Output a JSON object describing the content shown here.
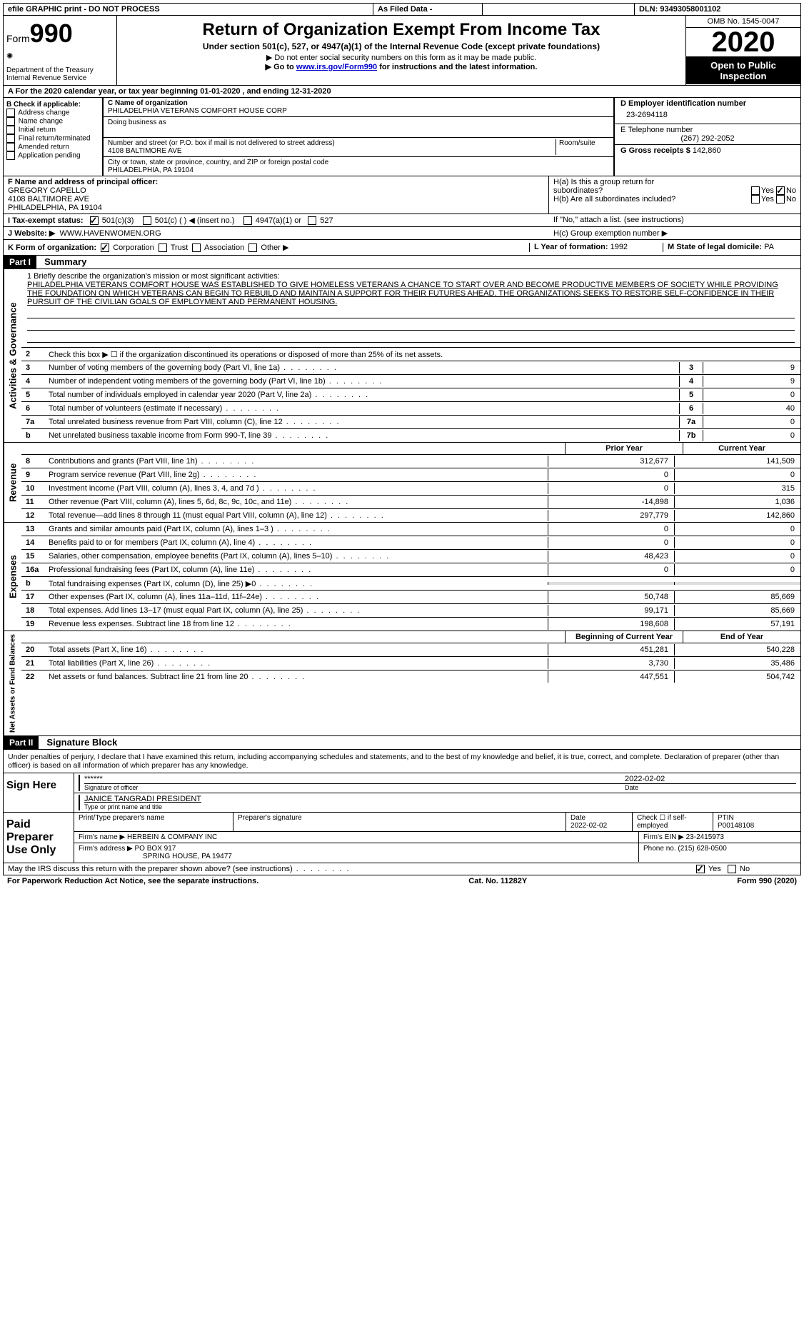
{
  "topbar": {
    "efile": "efile GRAPHIC print - DO NOT PROCESS",
    "asfiled": "As Filed Data -",
    "dln_label": "DLN:",
    "dln": "93493058001102"
  },
  "header": {
    "form_label": "Form",
    "form_num": "990",
    "dept": "Department of the Treasury\nInternal Revenue Service",
    "title": "Return of Organization Exempt From Income Tax",
    "subtitle": "Under section 501(c), 527, or 4947(a)(1) of the Internal Revenue Code (except private foundations)",
    "note1": "▶ Do not enter social security numbers on this form as it may be made public.",
    "note2_pre": "▶ Go to ",
    "note2_link": "www.irs.gov/Form990",
    "note2_post": " for instructions and the latest information.",
    "omb": "OMB No. 1545-0047",
    "year": "2020",
    "open": "Open to Public Inspection"
  },
  "rowA": "A   For the 2020 calendar year, or tax year beginning 01-01-2020   , and ending 12-31-2020",
  "colB": {
    "label": "B Check if applicable:",
    "items": [
      "Address change",
      "Name change",
      "Initial return",
      "Final return/terminated",
      "Amended return",
      "Application pending"
    ]
  },
  "colC": {
    "name_label": "C Name of organization",
    "name": "PHILADELPHIA VETERANS COMFORT HOUSE CORP",
    "dba_label": "Doing business as",
    "street_label": "Number and street (or P.O. box if mail is not delivered to street address)",
    "street": "4108 BALTIMORE AVE",
    "room_label": "Room/suite",
    "city_label": "City or town, state or province, country, and ZIP or foreign postal code",
    "city": "PHILADELPHIA, PA  19104"
  },
  "colD": {
    "ein_label": "D Employer identification number",
    "ein": "23-2694118",
    "tel_label": "E Telephone number",
    "tel": "(267) 292-2052",
    "gross_label": "G Gross receipts $",
    "gross": "142,860"
  },
  "rowF": {
    "label": "F  Name and address of principal officer:",
    "name": "GREGORY CAPELLO",
    "addr1": "4108 BALTIMORE AVE",
    "addr2": "PHILADELPHIA, PA  19104"
  },
  "rowH": {
    "ha": "H(a)  Is this a group return for",
    "ha2": "subordinates?",
    "hb": "H(b)  Are all subordinates included?",
    "hb_note": "If \"No,\" attach a list. (see instructions)",
    "hc": "H(c)  Group exemption number ▶",
    "yes": "Yes",
    "no": "No"
  },
  "rowI": {
    "label": "I   Tax-exempt status:",
    "opts": [
      "501(c)(3)",
      "501(c) (   ) ◀ (insert no.)",
      "4947(a)(1) or",
      "527"
    ]
  },
  "rowJ": {
    "label": "J   Website: ▶",
    "val": "WWW.HAVENWOMEN.ORG"
  },
  "rowK": {
    "label": "K Form of organization:",
    "opts": [
      "Corporation",
      "Trust",
      "Association",
      "Other ▶"
    ],
    "L_label": "L Year of formation:",
    "L_val": "1992",
    "M_label": "M State of legal domicile:",
    "M_val": "PA"
  },
  "parts": {
    "p1": "Part I",
    "p1_title": "Summary",
    "p2": "Part II",
    "p2_title": "Signature Block"
  },
  "mission": {
    "label": "1   Briefly describe the organization's mission or most significant activities:",
    "text": "PHILADELPHIA VETERANS COMFORT HOUSE WAS ESTABLISHED TO GIVE HOMELESS VETERANS A CHANCE TO START OVER AND BECOME PRODUCTIVE MEMBERS OF SOCIETY WHILE PROVIDING THE FOUNDATION ON WHICH VETERANS CAN BEGIN TO REBUILD AND MAINTAIN A SUPPORT FOR THEIR FUTURES AHEAD. THE ORGANIZATIONS SEEKS TO RESTORE SELF-CONFIDENCE IN THEIR PURSUIT OF THE CIVILIAN GOALS OF EMPLOYMENT AND PERMANENT HOUSING."
  },
  "gov": {
    "line2": "Check this box ▶ ☐ if the organization discontinued its operations or disposed of more than 25% of its net assets.",
    "lines": [
      {
        "n": "3",
        "d": "Number of voting members of the governing body (Part VI, line 1a)",
        "b": "3",
        "v": "9"
      },
      {
        "n": "4",
        "d": "Number of independent voting members of the governing body (Part VI, line 1b)",
        "b": "4",
        "v": "9"
      },
      {
        "n": "5",
        "d": "Total number of individuals employed in calendar year 2020 (Part V, line 2a)",
        "b": "5",
        "v": "0"
      },
      {
        "n": "6",
        "d": "Total number of volunteers (estimate if necessary)",
        "b": "6",
        "v": "40"
      },
      {
        "n": "7a",
        "d": "Total unrelated business revenue from Part VIII, column (C), line 12",
        "b": "7a",
        "v": "0"
      },
      {
        "n": "b",
        "d": "Net unrelated business taxable income from Form 990-T, line 39",
        "b": "7b",
        "v": "0"
      }
    ]
  },
  "twocol": {
    "prior": "Prior Year",
    "current": "Current Year",
    "begin": "Beginning of Current Year",
    "end": "End of Year"
  },
  "revenue": [
    {
      "n": "8",
      "d": "Contributions and grants (Part VIII, line 1h)",
      "p": "312,677",
      "c": "141,509"
    },
    {
      "n": "9",
      "d": "Program service revenue (Part VIII, line 2g)",
      "p": "0",
      "c": "0"
    },
    {
      "n": "10",
      "d": "Investment income (Part VIII, column (A), lines 3, 4, and 7d )",
      "p": "0",
      "c": "315"
    },
    {
      "n": "11",
      "d": "Other revenue (Part VIII, column (A), lines 5, 6d, 8c, 9c, 10c, and 11e)",
      "p": "-14,898",
      "c": "1,036"
    },
    {
      "n": "12",
      "d": "Total revenue—add lines 8 through 11 (must equal Part VIII, column (A), line 12)",
      "p": "297,779",
      "c": "142,860"
    }
  ],
  "expenses": [
    {
      "n": "13",
      "d": "Grants and similar amounts paid (Part IX, column (A), lines 1–3 )",
      "p": "0",
      "c": "0"
    },
    {
      "n": "14",
      "d": "Benefits paid to or for members (Part IX, column (A), line 4)",
      "p": "0",
      "c": "0"
    },
    {
      "n": "15",
      "d": "Salaries, other compensation, employee benefits (Part IX, column (A), lines 5–10)",
      "p": "48,423",
      "c": "0"
    },
    {
      "n": "16a",
      "d": "Professional fundraising fees (Part IX, column (A), line 11e)",
      "p": "0",
      "c": "0"
    },
    {
      "n": "b",
      "d": "Total fundraising expenses (Part IX, column (D), line 25) ▶0",
      "p": "",
      "c": "",
      "shaded": true
    },
    {
      "n": "17",
      "d": "Other expenses (Part IX, column (A), lines 11a–11d, 11f–24e)",
      "p": "50,748",
      "c": "85,669"
    },
    {
      "n": "18",
      "d": "Total expenses. Add lines 13–17 (must equal Part IX, column (A), line 25)",
      "p": "99,171",
      "c": "85,669"
    },
    {
      "n": "19",
      "d": "Revenue less expenses. Subtract line 18 from line 12",
      "p": "198,608",
      "c": "57,191"
    }
  ],
  "netassets": [
    {
      "n": "20",
      "d": "Total assets (Part X, line 16)",
      "p": "451,281",
      "c": "540,228"
    },
    {
      "n": "21",
      "d": "Total liabilities (Part X, line 26)",
      "p": "3,730",
      "c": "35,486"
    },
    {
      "n": "22",
      "d": "Net assets or fund balances. Subtract line 21 from line 20",
      "p": "447,551",
      "c": "504,742"
    }
  ],
  "vtabs": {
    "gov": "Activities & Governance",
    "rev": "Revenue",
    "exp": "Expenses",
    "net": "Net Assets or Fund Balances"
  },
  "sig": {
    "penalty": "Under penalties of perjury, I declare that I have examined this return, including accompanying schedules and statements, and to the best of my knowledge and belief, it is true, correct, and complete. Declaration of preparer (other than officer) is based on all information of which preparer has any knowledge.",
    "sign_here": "Sign Here",
    "stars": "******",
    "sig_officer": "Signature of officer",
    "date": "Date",
    "date_val": "2022-02-02",
    "name_title": "JANICE TANGRADI PRESIDENT",
    "type_name": "Type or print name and title"
  },
  "prep": {
    "label": "Paid Preparer Use Only",
    "h_name": "Print/Type preparer's name",
    "h_sig": "Preparer's signature",
    "h_date": "Date",
    "h_date_val": "2022-02-02",
    "h_check": "Check ☐ if self-employed",
    "h_ptin": "PTIN",
    "ptin": "P00148108",
    "firm_name_label": "Firm's name      ▶",
    "firm_name": "HERBEIN & COMPANY INC",
    "firm_ein_label": "Firm's EIN ▶",
    "firm_ein": "23-2415973",
    "firm_addr_label": "Firm's address ▶",
    "firm_addr1": "PO BOX 917",
    "firm_addr2": "SPRING HOUSE, PA  19477",
    "phone_label": "Phone no.",
    "phone": "(215) 628-0500"
  },
  "footer": {
    "discuss": "May the IRS discuss this return with the preparer shown above? (see instructions)",
    "yes": "Yes",
    "no": "No",
    "paperwork": "For Paperwork Reduction Act Notice, see the separate instructions.",
    "cat": "Cat. No. 11282Y",
    "form": "Form 990 (2020)"
  }
}
